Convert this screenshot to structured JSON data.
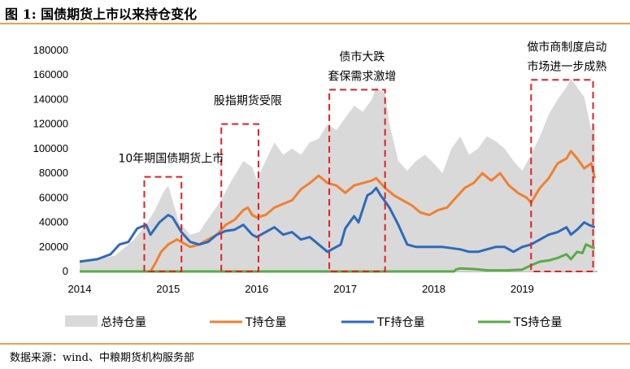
{
  "title": "图 1:  国债期货上市以来持仓变化",
  "source": "数据来源：wind、中粮期货机构服务部",
  "colors": {
    "total": "#d9d9d9",
    "T": "#f08030",
    "TF": "#2e6bb8",
    "TS": "#5aaa46",
    "box": "#e02020",
    "rule": "#f0a050"
  },
  "chart_data": {
    "type": "area",
    "title": "",
    "xlabel": "",
    "ylabel": "",
    "xlim": [
      2014.0,
      2019.85
    ],
    "ylim": [
      0,
      180000
    ],
    "x_ticks": [
      "2014",
      "2015",
      "2016",
      "2017",
      "2018",
      "2019"
    ],
    "y_ticks": [
      "0",
      "20000",
      "40000",
      "60000",
      "80000",
      "100000",
      "120000",
      "140000",
      "160000",
      "180000"
    ],
    "grid": false,
    "legend_position": "bottom",
    "series": [
      {
        "name": "总持仓量",
        "kind": "area",
        "points": [
          [
            2014.0,
            8000
          ],
          [
            2014.2,
            10000
          ],
          [
            2014.4,
            13000
          ],
          [
            2014.6,
            25000
          ],
          [
            2014.75,
            38000
          ],
          [
            2014.85,
            50000
          ],
          [
            2014.95,
            65000
          ],
          [
            2015.0,
            70000
          ],
          [
            2015.05,
            58000
          ],
          [
            2015.12,
            40000
          ],
          [
            2015.25,
            30000
          ],
          [
            2015.35,
            32000
          ],
          [
            2015.5,
            48000
          ],
          [
            2015.6,
            58000
          ],
          [
            2015.7,
            72000
          ],
          [
            2015.85,
            90000
          ],
          [
            2015.95,
            85000
          ],
          [
            2016.0,
            75000
          ],
          [
            2016.1,
            90000
          ],
          [
            2016.2,
            105000
          ],
          [
            2016.3,
            95000
          ],
          [
            2016.4,
            100000
          ],
          [
            2016.5,
            95000
          ],
          [
            2016.6,
            105000
          ],
          [
            2016.7,
            108000
          ],
          [
            2016.8,
            120000
          ],
          [
            2016.9,
            115000
          ],
          [
            2017.0,
            125000
          ],
          [
            2017.1,
            135000
          ],
          [
            2017.2,
            130000
          ],
          [
            2017.3,
            140000
          ],
          [
            2017.35,
            150000
          ],
          [
            2017.45,
            145000
          ],
          [
            2017.5,
            120000
          ],
          [
            2017.6,
            90000
          ],
          [
            2017.7,
            82000
          ],
          [
            2017.8,
            90000
          ],
          [
            2017.9,
            95000
          ],
          [
            2018.0,
            88000
          ],
          [
            2018.1,
            80000
          ],
          [
            2018.2,
            100000
          ],
          [
            2018.3,
            110000
          ],
          [
            2018.4,
            95000
          ],
          [
            2018.5,
            100000
          ],
          [
            2018.6,
            110000
          ],
          [
            2018.7,
            106000
          ],
          [
            2018.8,
            100000
          ],
          [
            2018.9,
            90000
          ],
          [
            2019.0,
            82000
          ],
          [
            2019.1,
            95000
          ],
          [
            2019.2,
            110000
          ],
          [
            2019.3,
            128000
          ],
          [
            2019.4,
            140000
          ],
          [
            2019.5,
            150000
          ],
          [
            2019.55,
            157000
          ],
          [
            2019.6,
            152000
          ],
          [
            2019.7,
            142000
          ],
          [
            2019.78,
            115000
          ],
          [
            2019.82,
            120000
          ]
        ]
      },
      {
        "name": "T持仓量",
        "kind": "line",
        "points": [
          [
            2014.8,
            0
          ],
          [
            2014.85,
            6000
          ],
          [
            2014.92,
            16000
          ],
          [
            2015.0,
            22000
          ],
          [
            2015.1,
            26000
          ],
          [
            2015.15,
            24000
          ],
          [
            2015.25,
            20000
          ],
          [
            2015.35,
            22000
          ],
          [
            2015.45,
            26000
          ],
          [
            2015.55,
            30000
          ],
          [
            2015.65,
            38000
          ],
          [
            2015.75,
            42000
          ],
          [
            2015.85,
            50000
          ],
          [
            2015.9,
            52000
          ],
          [
            2015.95,
            46000
          ],
          [
            2016.0,
            44000
          ],
          [
            2016.1,
            46000
          ],
          [
            2016.2,
            52000
          ],
          [
            2016.3,
            55000
          ],
          [
            2016.4,
            58000
          ],
          [
            2016.5,
            67000
          ],
          [
            2016.6,
            72000
          ],
          [
            2016.7,
            78000
          ],
          [
            2016.8,
            72000
          ],
          [
            2016.9,
            70000
          ],
          [
            2017.0,
            64000
          ],
          [
            2017.1,
            70000
          ],
          [
            2017.2,
            72000
          ],
          [
            2017.3,
            74000
          ],
          [
            2017.35,
            76000
          ],
          [
            2017.45,
            68000
          ],
          [
            2017.55,
            62000
          ],
          [
            2017.65,
            58000
          ],
          [
            2017.75,
            54000
          ],
          [
            2017.85,
            48000
          ],
          [
            2017.95,
            46000
          ],
          [
            2018.05,
            50000
          ],
          [
            2018.15,
            52000
          ],
          [
            2018.25,
            60000
          ],
          [
            2018.35,
            68000
          ],
          [
            2018.45,
            72000
          ],
          [
            2018.55,
            80000
          ],
          [
            2018.65,
            74000
          ],
          [
            2018.75,
            80000
          ],
          [
            2018.85,
            70000
          ],
          [
            2018.95,
            64000
          ],
          [
            2019.05,
            60000
          ],
          [
            2019.1,
            56000
          ],
          [
            2019.2,
            68000
          ],
          [
            2019.3,
            76000
          ],
          [
            2019.4,
            88000
          ],
          [
            2019.5,
            92000
          ],
          [
            2019.55,
            98000
          ],
          [
            2019.62,
            92000
          ],
          [
            2019.7,
            84000
          ],
          [
            2019.78,
            88000
          ],
          [
            2019.82,
            76000
          ]
        ]
      },
      {
        "name": "TF持仓量",
        "kind": "line",
        "points": [
          [
            2014.0,
            8000
          ],
          [
            2014.2,
            10000
          ],
          [
            2014.35,
            14000
          ],
          [
            2014.45,
            22000
          ],
          [
            2014.55,
            24000
          ],
          [
            2014.65,
            35000
          ],
          [
            2014.75,
            38000
          ],
          [
            2014.8,
            30000
          ],
          [
            2014.9,
            40000
          ],
          [
            2015.0,
            46000
          ],
          [
            2015.05,
            44000
          ],
          [
            2015.15,
            32000
          ],
          [
            2015.25,
            24000
          ],
          [
            2015.35,
            22000
          ],
          [
            2015.45,
            24000
          ],
          [
            2015.55,
            30000
          ],
          [
            2015.65,
            33000
          ],
          [
            2015.75,
            34000
          ],
          [
            2015.85,
            38000
          ],
          [
            2015.95,
            30000
          ],
          [
            2016.0,
            28000
          ],
          [
            2016.1,
            32000
          ],
          [
            2016.2,
            36000
          ],
          [
            2016.3,
            30000
          ],
          [
            2016.4,
            32000
          ],
          [
            2016.5,
            26000
          ],
          [
            2016.6,
            28000
          ],
          [
            2016.7,
            22000
          ],
          [
            2016.8,
            16000
          ],
          [
            2016.85,
            18000
          ],
          [
            2016.95,
            22000
          ],
          [
            2017.0,
            35000
          ],
          [
            2017.1,
            45000
          ],
          [
            2017.15,
            40000
          ],
          [
            2017.25,
            62000
          ],
          [
            2017.3,
            64000
          ],
          [
            2017.35,
            68000
          ],
          [
            2017.4,
            62000
          ],
          [
            2017.5,
            52000
          ],
          [
            2017.6,
            38000
          ],
          [
            2017.7,
            22000
          ],
          [
            2017.8,
            20000
          ],
          [
            2017.9,
            20000
          ],
          [
            2018.0,
            20000
          ],
          [
            2018.1,
            20000
          ],
          [
            2018.2,
            19000
          ],
          [
            2018.3,
            18000
          ],
          [
            2018.4,
            16000
          ],
          [
            2018.5,
            16000
          ],
          [
            2018.6,
            18000
          ],
          [
            2018.7,
            20000
          ],
          [
            2018.8,
            20000
          ],
          [
            2018.9,
            16000
          ],
          [
            2019.0,
            20000
          ],
          [
            2019.1,
            22000
          ],
          [
            2019.2,
            26000
          ],
          [
            2019.3,
            30000
          ],
          [
            2019.4,
            32000
          ],
          [
            2019.5,
            36000
          ],
          [
            2019.55,
            30000
          ],
          [
            2019.62,
            34000
          ],
          [
            2019.7,
            40000
          ],
          [
            2019.75,
            38000
          ],
          [
            2019.82,
            36000
          ]
        ]
      },
      {
        "name": "TS持仓量",
        "kind": "line",
        "points": [
          [
            2014.0,
            0
          ],
          [
            2018.23,
            0
          ],
          [
            2018.25,
            1500
          ],
          [
            2018.3,
            2500
          ],
          [
            2018.45,
            2000
          ],
          [
            2018.6,
            1000
          ],
          [
            2018.8,
            800
          ],
          [
            2019.0,
            1500
          ],
          [
            2019.1,
            5000
          ],
          [
            2019.2,
            8000
          ],
          [
            2019.3,
            9000
          ],
          [
            2019.4,
            11000
          ],
          [
            2019.5,
            14000
          ],
          [
            2019.55,
            10000
          ],
          [
            2019.62,
            16000
          ],
          [
            2019.68,
            15000
          ],
          [
            2019.72,
            22000
          ],
          [
            2019.78,
            20000
          ],
          [
            2019.82,
            19000
          ]
        ]
      }
    ],
    "highlight_boxes": [
      {
        "x": [
          2014.73,
          2015.15
        ],
        "y": [
          0,
          77000
        ],
        "label": "10年期国债期货上市"
      },
      {
        "x": [
          2015.6,
          2016.02
        ],
        "y": [
          0,
          120000
        ],
        "label": "股指期货受限"
      },
      {
        "x": [
          2016.82,
          2017.45
        ],
        "y": [
          0,
          148000
        ],
        "label_lines": [
          "债市大跌",
          "套保需求激增"
        ]
      },
      {
        "x": [
          2019.1,
          2019.8
        ],
        "y": [
          0,
          156000
        ],
        "label_lines": [
          "做市商制度启动",
          "市场进一步成熟"
        ]
      }
    ]
  }
}
